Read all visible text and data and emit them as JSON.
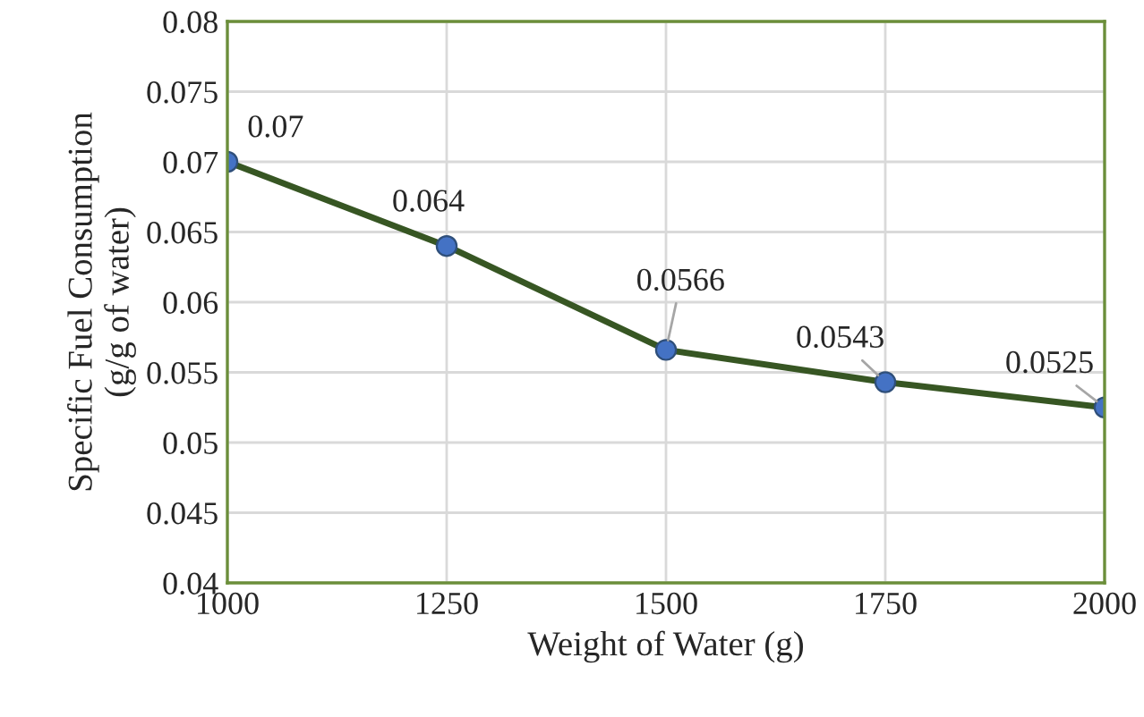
{
  "chart_data": {
    "type": "line",
    "xlabel": "Weight of Water (g)",
    "ylabel": "Specific Fuel Consumption\n(g/g of water)",
    "x": [
      1000,
      1250,
      1500,
      1750,
      2000
    ],
    "series": [
      {
        "color": "#375623",
        "values": [
          0.07,
          0.064,
          0.0566,
          0.0543,
          0.0525
        ]
      }
    ],
    "xlim": [
      1000,
      2000
    ],
    "xticks": [
      1000,
      1250,
      1500,
      1750,
      2000
    ],
    "ylim": [
      0.04,
      0.08
    ],
    "yticks": [
      0.04,
      0.045,
      0.05,
      0.055,
      0.06,
      0.065,
      0.07,
      0.075,
      0.08
    ],
    "grid": true,
    "marker": "circle",
    "line_style": "solid",
    "data_labels": true
  }
}
